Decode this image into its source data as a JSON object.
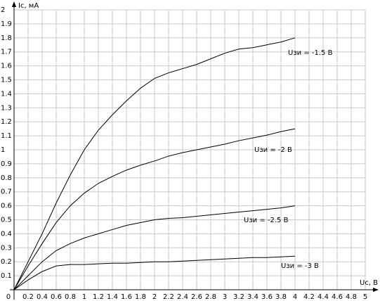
{
  "chart_data": {
    "type": "line",
    "xlabel": "Uc, B",
    "ylabel": "Ic, мА",
    "x": [
      0,
      0.2,
      0.4,
      0.6,
      0.8,
      1.0,
      1.2,
      1.4,
      1.6,
      1.8,
      2.0,
      2.2,
      2.4,
      2.6,
      2.8,
      3.0,
      3.2,
      3.4,
      3.6,
      3.8,
      4.0
    ],
    "series": [
      {
        "name": "Uзи = -1.5 B",
        "color": "#000000",
        "values": [
          0,
          0.2,
          0.4,
          0.62,
          0.82,
          1.0,
          1.14,
          1.25,
          1.35,
          1.44,
          1.51,
          1.55,
          1.58,
          1.61,
          1.65,
          1.69,
          1.72,
          1.73,
          1.75,
          1.77,
          1.8
        ]
      },
      {
        "name": "Uзи = -2 B",
        "color": "#000000",
        "values": [
          0,
          0.17,
          0.33,
          0.48,
          0.6,
          0.69,
          0.76,
          0.81,
          0.855,
          0.89,
          0.92,
          0.955,
          0.98,
          1.0,
          1.02,
          1.04,
          1.065,
          1.085,
          1.105,
          1.13,
          1.15
        ]
      },
      {
        "name": "Uзи = -2.5 B",
        "color": "#000000",
        "values": [
          0,
          0.1,
          0.2,
          0.28,
          0.33,
          0.37,
          0.4,
          0.43,
          0.46,
          0.48,
          0.5,
          0.51,
          0.515,
          0.525,
          0.535,
          0.545,
          0.555,
          0.565,
          0.575,
          0.585,
          0.6
        ]
      },
      {
        "name": "Uзи = -3 B",
        "color": "#000000",
        "values": [
          0,
          0.07,
          0.13,
          0.17,
          0.18,
          0.18,
          0.185,
          0.19,
          0.19,
          0.195,
          0.2,
          0.2,
          0.205,
          0.21,
          0.215,
          0.22,
          0.225,
          0.23,
          0.23,
          0.235,
          0.24
        ]
      }
    ],
    "xlim": [
      0,
      5
    ],
    "ylim": [
      0,
      2
    ],
    "xticks": [
      0,
      0.2,
      0.4,
      0.6,
      0.8,
      1,
      1.2,
      1.4,
      1.6,
      1.8,
      2,
      2.2,
      2.4,
      2.6,
      2.8,
      3,
      3.2,
      3.4,
      3.6,
      3.8,
      4,
      4.2,
      4.4,
      4.6,
      4.8,
      5
    ],
    "yticks": [
      0.1,
      0.2,
      0.3,
      0.4,
      0.5,
      0.6,
      0.7,
      0.8,
      0.9,
      1,
      1.1,
      1.2,
      1.3,
      1.4,
      1.5,
      1.6,
      1.7,
      1.8,
      1.9,
      2
    ],
    "grid": true
  }
}
